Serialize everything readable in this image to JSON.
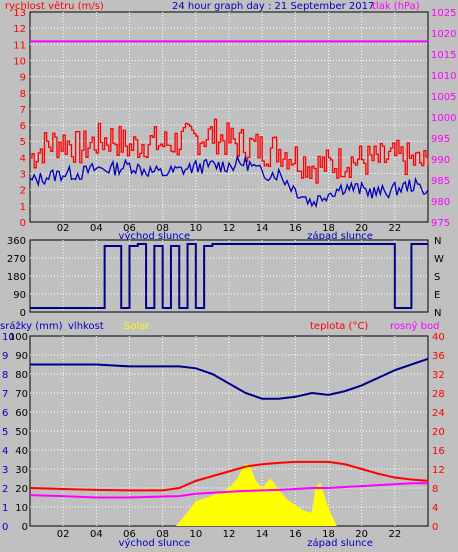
{
  "header": {
    "left_label": "rychlost větru (m/s)",
    "title": "24 hour graph day : 21 September 2017",
    "right_label": "tlak (hPa)"
  },
  "colors": {
    "background": "#c0c0c0",
    "plot_bg": "#c0c0c0",
    "red": "#ff0000",
    "blue": "#0000c0",
    "magenta": "#ff00ff",
    "darkblue": "#00008b",
    "yellow": "#ffff00",
    "grid": "#ffffff"
  },
  "x_axis": {
    "ticks": [
      "02",
      "04",
      "06",
      "08",
      "10",
      "12",
      "14",
      "16",
      "18",
      "20",
      "22"
    ],
    "sunrise_label": "východ slunce",
    "sunset_label": "západ slunce",
    "sunrise_hour": 7.5,
    "sunset_hour": 18.7
  },
  "chart_data": [
    {
      "type": "line",
      "name": "wind",
      "x_range": [
        0,
        24
      ],
      "ylim_left": [
        0,
        13
      ],
      "ylim_right": [
        975,
        1025
      ],
      "left_ticks": [
        "0",
        "1",
        "2",
        "3",
        "4",
        "5",
        "6",
        "7",
        "8",
        "9",
        "10",
        "11",
        "12",
        "13"
      ],
      "right_ticks": [
        "975",
        "980",
        "985",
        "990",
        "995",
        "1000",
        "1005",
        "1010",
        "1015",
        "1020",
        "1025"
      ],
      "series": [
        {
          "name": "gust",
          "axis": "left",
          "color": "#ff0000",
          "x": [
            0,
            1,
            2,
            3,
            4,
            5,
            6,
            7,
            8,
            9,
            10,
            11,
            12,
            13,
            14,
            15,
            16,
            17,
            18,
            19,
            20,
            21,
            22,
            23,
            24
          ],
          "y": [
            4.0,
            4.8,
            5.0,
            4.5,
            5.0,
            5.2,
            4.6,
            5.0,
            4.8,
            5.0,
            5.2,
            5.4,
            5.0,
            4.8,
            4.5,
            4.5,
            4.0,
            3.5,
            3.5,
            3.8,
            3.8,
            3.8,
            4.0,
            3.8,
            3.5
          ]
        },
        {
          "name": "average",
          "axis": "left",
          "color": "#0000c0",
          "x": [
            0,
            1,
            2,
            3,
            4,
            5,
            6,
            7,
            8,
            9,
            10,
            11,
            12,
            13,
            14,
            15,
            16,
            17,
            18,
            19,
            20,
            21,
            22,
            23,
            24
          ],
          "y": [
            2.5,
            2.8,
            3.0,
            3.0,
            3.3,
            3.3,
            3.5,
            3.2,
            3.0,
            3.2,
            3.4,
            3.5,
            3.5,
            3.7,
            3.0,
            3.0,
            2.0,
            1.2,
            1.8,
            2.2,
            2.0,
            1.8,
            2.0,
            2.3,
            2.0
          ]
        },
        {
          "name": "pressure",
          "axis": "right",
          "color": "#ff00ff",
          "x": [
            0,
            1,
            2,
            4,
            6,
            8,
            10,
            12,
            14,
            16,
            18,
            20,
            22,
            24
          ],
          "y": [
            1018,
            1018,
            1018,
            1018,
            1018,
            1018,
            1018,
            1018,
            1018,
            1018,
            1018,
            1018,
            1018,
            1018
          ]
        }
      ]
    },
    {
      "type": "line",
      "name": "direction",
      "x_range": [
        0,
        24
      ],
      "ylim": [
        0,
        360
      ],
      "left_ticks": [
        "0",
        "90",
        "180",
        "270",
        "360"
      ],
      "right_labels": [
        "N",
        "W",
        "S",
        "E",
        "N"
      ],
      "series": [
        {
          "name": "direction",
          "color": "#00008b",
          "x": [
            0,
            1,
            2,
            3,
            4,
            4.5,
            5,
            5.5,
            6,
            6.5,
            7,
            7.5,
            8,
            8.5,
            9,
            9.5,
            10,
            10.5,
            11,
            11.5,
            12,
            12.5,
            13,
            14,
            15,
            16,
            17,
            18,
            19,
            20,
            21,
            22,
            23,
            24
          ],
          "y": [
            20,
            20,
            20,
            20,
            20,
            330,
            330,
            20,
            330,
            340,
            20,
            330,
            20,
            330,
            20,
            340,
            20,
            330,
            340,
            340,
            340,
            340,
            340,
            340,
            340,
            340,
            340,
            340,
            340,
            340,
            340,
            20,
            340,
            340
          ]
        }
      ]
    },
    {
      "type": "line",
      "name": "temperature_humidity",
      "x_range": [
        0,
        24
      ],
      "left_labels": [
        "srážky (mm)",
        "vlhkost"
      ],
      "solar_label": "Solar",
      "right_labels": [
        "teplota (°C)",
        "rosný bod"
      ],
      "rain_ticks": [
        "0",
        "1",
        "2",
        "3",
        "4",
        "5",
        "6",
        "7",
        "8",
        "9",
        "10"
      ],
      "humidity_ticks": [
        "0",
        "10",
        "20",
        "30",
        "40",
        "50",
        "60",
        "70",
        "80",
        "90",
        "100"
      ],
      "humidity_tick_values": [
        0,
        10,
        20,
        30,
        40,
        50,
        60,
        70,
        80,
        90,
        100
      ],
      "temperature_ticks": [
        "0",
        "4",
        "8",
        "12",
        "16",
        "20",
        "24",
        "28",
        "32",
        "36",
        "40"
      ],
      "series": [
        {
          "name": "humidity",
          "color": "#00008b",
          "x": [
            0,
            2,
            4,
            6,
            8,
            9,
            10,
            11,
            12,
            13,
            14,
            15,
            16,
            17,
            18,
            19,
            20,
            21,
            22,
            23,
            24
          ],
          "y": [
            85,
            85,
            85,
            84,
            84,
            84,
            83,
            80,
            75,
            70,
            67,
            67,
            68,
            70,
            69,
            71,
            74,
            78,
            82,
            85,
            88
          ]
        },
        {
          "name": "temperature",
          "color": "#ff0000",
          "x": [
            0,
            2,
            4,
            6,
            8,
            9,
            10,
            11,
            12,
            13,
            14,
            15,
            16,
            17,
            18,
            19,
            20,
            21,
            22,
            23,
            24
          ],
          "y": [
            8.0,
            7.8,
            7.6,
            7.5,
            7.5,
            8.0,
            9.5,
            10.5,
            11.5,
            12.5,
            13.0,
            13.3,
            13.5,
            13.5,
            13.5,
            13.0,
            12.0,
            11.0,
            10.2,
            9.8,
            9.5
          ]
        },
        {
          "name": "dewpoint",
          "color": "#ff00ff",
          "x": [
            0,
            2,
            4,
            6,
            8,
            9,
            10,
            11,
            12,
            13,
            14,
            15,
            16,
            17,
            18,
            19,
            20,
            21,
            22,
            23,
            24
          ],
          "y": [
            6.5,
            6.3,
            6.0,
            6.0,
            6.2,
            6.3,
            6.8,
            7.0,
            7.2,
            7.4,
            7.5,
            7.6,
            7.8,
            8.0,
            8.0,
            8.2,
            8.4,
            8.6,
            8.8,
            9.0,
            9.0
          ]
        },
        {
          "name": "solar",
          "color": "#ffff00",
          "x": [
            0,
            8.8,
            9.2,
            10,
            11,
            12,
            12.5,
            13,
            13.3,
            13.6,
            14,
            14.5,
            15,
            15.5,
            16,
            16.5,
            17,
            17.2,
            17.5,
            18,
            18.5,
            19,
            24
          ],
          "y": [
            0,
            0,
            4,
            13,
            16,
            20,
            25,
            33,
            31,
            24,
            20,
            25,
            19,
            14,
            11,
            8,
            7,
            20,
            23,
            9,
            0,
            0,
            0
          ]
        }
      ]
    }
  ]
}
